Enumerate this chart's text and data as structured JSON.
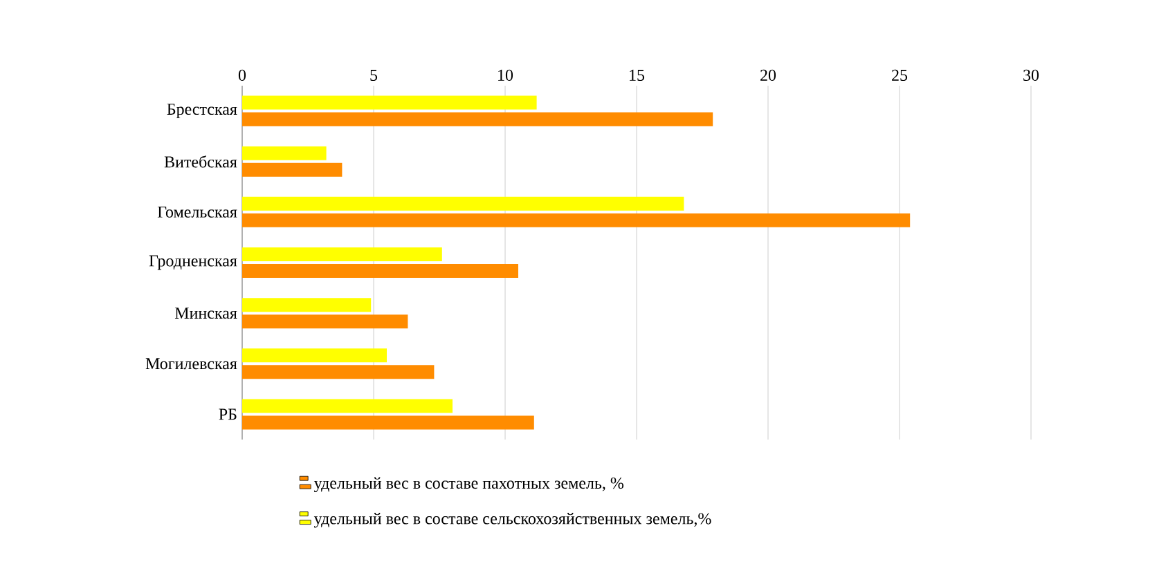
{
  "chart_data": {
    "type": "bar",
    "orientation": "horizontal",
    "categories": [
      "Брестская",
      "Витебская",
      "Гомельская",
      "Гродненская",
      "Минская",
      "Могилевская",
      "РБ"
    ],
    "series": [
      {
        "name": "удельный вес в составе пахотных земель, %",
        "color": "#ff8c00",
        "values": [
          17.9,
          3.8,
          25.4,
          10.5,
          6.3,
          7.3,
          11.1
        ]
      },
      {
        "name": "удельный вес в составе сельскохозяйственных земель,%",
        "color": "#ffff00",
        "values": [
          11.2,
          3.2,
          16.8,
          7.6,
          4.9,
          5.5,
          8.0
        ]
      }
    ],
    "xlim": [
      0,
      30
    ],
    "xticks": [
      0,
      5,
      10,
      15,
      20,
      25,
      30
    ],
    "grid": "x",
    "legend": "bottom"
  }
}
